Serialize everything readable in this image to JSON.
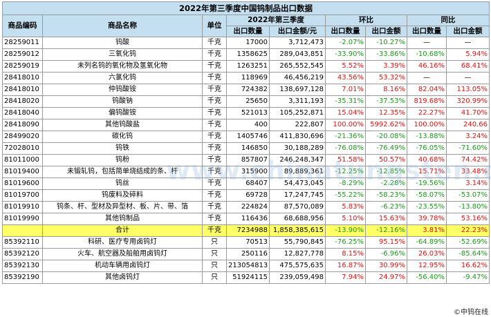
{
  "table": {
    "title": "2022年第三季度中国钨制品出口数据",
    "headers": {
      "code": "商品编码",
      "name": "商品名称",
      "unit": "单位",
      "q3": "2022年第三季度",
      "mom": "环比",
      "yoy": "同比",
      "qty": "出口数量",
      "amount": "出口金额/元",
      "qty2": "出口数量",
      "amount2": "出口金额"
    },
    "rows": [
      {
        "code": "28259011",
        "name": "钨酸",
        "unit": "千克",
        "qty": "17000",
        "amount": "3,712,473",
        "mom_qty": "-2.07%",
        "mom_amt": "-10.27%",
        "yoy_qty": "—",
        "yoy_amt": "—"
      },
      {
        "code": "28259012",
        "name": "三氧化钨",
        "unit": "千克",
        "qty": "1358625",
        "amount": "289,043,851",
        "mom_qty": "-33.90%",
        "mom_amt": "-33.86%",
        "yoy_qty": "-10.68%",
        "yoy_amt": "5.94%"
      },
      {
        "code": "28259019",
        "name": "未列名钨的氧化物及氢氧化物",
        "unit": "千克",
        "qty": "1263251",
        "amount": "265,552,545",
        "mom_qty": "5.52%",
        "mom_amt": "3.39%",
        "yoy_qty": "46.16%",
        "yoy_amt": "68.41%"
      },
      {
        "code": "28418010",
        "name": "六氯化钨",
        "unit": "千克",
        "qty": "118969",
        "amount": "46,456,219",
        "mom_qty": "43.56%",
        "mom_amt": "53.32%",
        "yoy_qty": "—",
        "yoy_amt": "—"
      },
      {
        "code": "28418010",
        "name": "仲钨酸铵",
        "unit": "千克",
        "qty": "724382",
        "amount": "138,697,128",
        "mom_qty": "7.01%",
        "mom_amt": "8.16%",
        "yoy_qty": "82.04%",
        "yoy_amt": "113.05%"
      },
      {
        "code": "28418020",
        "name": "钨酸钠",
        "unit": "千克",
        "qty": "25650",
        "amount": "3,311,193",
        "mom_qty": "-35.31%",
        "mom_amt": "-37.53%",
        "yoy_qty": "819.68%",
        "yoy_amt": "320.99%"
      },
      {
        "code": "28418040",
        "name": "偏钨酸铵",
        "unit": "千克",
        "qty": "521013",
        "amount": "105,252,871",
        "mom_qty": "15.04%",
        "mom_amt": "12.35%",
        "yoy_qty": "22.27%",
        "yoy_amt": "41.70%"
      },
      {
        "code": "28418090",
        "name": "其他钨酸盐",
        "unit": "千克",
        "qty": "400",
        "amount": "222,807",
        "mom_qty": "100.00%",
        "mom_amt": "5992.62%",
        "yoy_qty": "100.00%",
        "yoy_amt": "240.66"
      },
      {
        "code": "28499020",
        "name": "碳化钨",
        "unit": "千克",
        "qty": "1405746",
        "amount": "411,830,696",
        "mom_qty": "-21.36%",
        "mom_amt": "-20.08%",
        "yoy_qty": "-13.88%",
        "yoy_amt": "3.24%"
      },
      {
        "code": "72028010",
        "name": "钨铁",
        "unit": "千克",
        "qty": "146850",
        "amount": "30,188,289",
        "mom_qty": "-76.08%",
        "mom_amt": "-76.49%",
        "yoy_qty": "-76.05%",
        "yoy_amt": "-71.60%"
      },
      {
        "code": "81011000",
        "name": "钨粉",
        "unit": "千克",
        "qty": "857807",
        "amount": "246,248,347",
        "mom_qty": "51.58%",
        "mom_amt": "50.57%",
        "yoy_qty": "40.68%",
        "yoy_amt": "74.42%"
      },
      {
        "code": "81019400",
        "name": "未锻轧钨，包括简单烧结成的条、杆",
        "unit": "千克",
        "qty": "315900",
        "amount": "89,889,361",
        "mom_qty": "-12.25%",
        "mom_amt": "-12.85%",
        "yoy_qty": "15.71%",
        "yoy_amt": "33.48%"
      },
      {
        "code": "81019600",
        "name": "钨丝",
        "unit": "千克",
        "qty": "68407",
        "amount": "54,473,045",
        "mom_qty": "-8.29%",
        "mom_amt": "-2.28%",
        "yoy_qty": "-19.56%",
        "yoy_amt": "3.14%"
      },
      {
        "code": "81019700",
        "name": "钨废料及碎料",
        "unit": "千克",
        "qty": "69728",
        "amount": "17,247,745",
        "mom_qty": "-55.22%",
        "mom_amt": "-58.23%",
        "yoy_qty": "-58.07%",
        "yoy_amt": "-53.07%"
      },
      {
        "code": "81019910",
        "name": "钨条、杆、型材及异型材、板、片、带、箔",
        "unit": "千克",
        "qty": "224824",
        "amount": "87,570,089",
        "mom_qty": "5.83%",
        "mom_amt": "-6.23%",
        "yoy_qty": "-23.55%",
        "yoy_amt": "-13.80%"
      },
      {
        "code": "81019990",
        "name": "其他钨制品",
        "unit": "千克",
        "qty": "116436",
        "amount": "68,688,956",
        "mom_qty": "5.10%",
        "mom_amt": "15.63%",
        "yoy_qty": "39.78%",
        "yoy_amt": "53.16%"
      },
      {
        "code": "",
        "name": "合计",
        "unit": "千克",
        "qty": "7234988",
        "amount": "1,858,385,615",
        "mom_qty": "-13.90%",
        "mom_amt": "-12.16%",
        "yoy_qty": "3.81%",
        "yoy_amt": "22.23%",
        "total": true
      },
      {
        "code": "85392110",
        "name": "科研、医疗专用卤钨灯",
        "unit": "只",
        "qty": "70513",
        "amount": "55,790,845",
        "mom_qty": "-76.25%",
        "mom_amt": "95.15%",
        "yoy_qty": "-64.89%",
        "yoy_amt": "-52.69%"
      },
      {
        "code": "85392120",
        "name": "火车、航空器及船舶用卤钨灯",
        "unit": "只",
        "qty": "250116",
        "amount": "12,827,778",
        "mom_qty": "8.15%",
        "mom_amt": "-6.96%",
        "yoy_qty": "26.03%",
        "yoy_amt": "-85.64%"
      },
      {
        "code": "85392130",
        "name": "机动车辆用卤钨灯",
        "unit": "只",
        "qty": "213054813",
        "amount": "475,575,635",
        "mom_qty": "16.87%",
        "mom_amt": "30.99%",
        "yoy_qty": "12.95%",
        "yoy_amt": "16.62%"
      },
      {
        "code": "85392190",
        "name": "其他卤钨灯",
        "unit": "只",
        "qty": "51924115",
        "amount": "239,059,498",
        "mom_qty": "7.94%",
        "mom_amt": "24.97%",
        "yoy_qty": "-56.40%",
        "yoy_amt": "-9.47%"
      }
    ]
  },
  "watermark": "www.chinatungsten.com",
  "logo": "©中钨在线",
  "colors": {
    "negative": "#1a9a1a",
    "positive": "#dd1111",
    "header": "#c4dff0",
    "total": "#ffff66"
  }
}
